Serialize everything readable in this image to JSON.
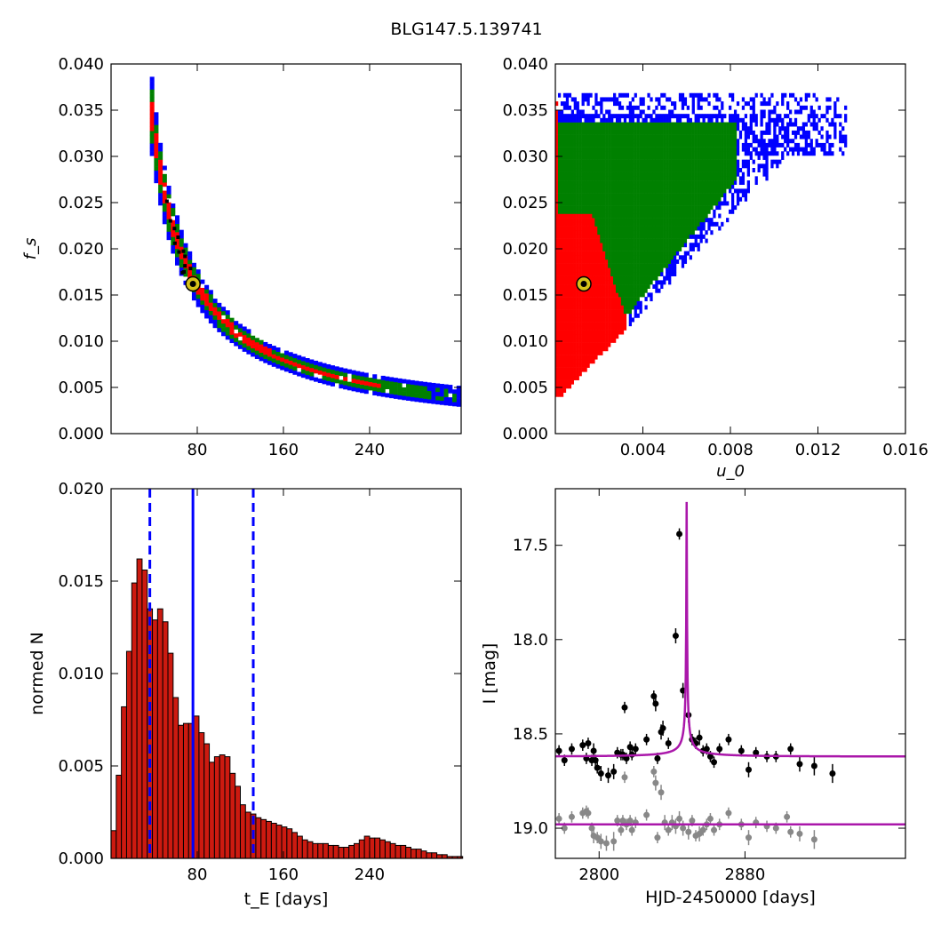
{
  "figure_title": "BLG147.5.139741",
  "colors": {
    "blue": "#0000ff",
    "green": "#008000",
    "red": "#ff0000",
    "bar": "#cc1a10",
    "model": "#aa17aa",
    "gray": "#888888"
  },
  "chart_data": [
    {
      "id": "fs_vs_tE",
      "type": "heatmap",
      "title": "",
      "xlabel": "",
      "ylabel": "f_s",
      "xlim": [
        0,
        325
      ],
      "ylim": [
        0,
        0.04
      ],
      "xticks": [
        80,
        160,
        240
      ],
      "yticks": [
        0.0,
        0.005,
        0.01,
        0.015,
        0.02,
        0.025,
        0.03,
        0.035,
        0.04
      ],
      "ytick_labels": [
        "0.000",
        "0.005",
        "0.010",
        "0.015",
        "0.020",
        "0.025",
        "0.030",
        "0.035",
        "0.040"
      ],
      "confidence_levels": [
        "red",
        "green",
        "blue"
      ],
      "relation": "f_s ≈ 1.23 / t_E",
      "t_range": [
        36,
        322
      ],
      "best_fit": {
        "x": 76,
        "y": 0.0162
      }
    },
    {
      "id": "fs_vs_u0",
      "type": "heatmap",
      "title": "",
      "xlabel": "u_0",
      "ylabel": "",
      "xlim": [
        0,
        0.016
      ],
      "ylim": [
        0,
        0.04
      ],
      "xticks": [
        0.004,
        0.008,
        0.012,
        0.016
      ],
      "xtick_labels": [
        "0.004",
        "0.008",
        "0.012",
        "0.016"
      ],
      "yticks": [
        0.0,
        0.005,
        0.01,
        0.015,
        0.02,
        0.025,
        0.03,
        0.035,
        0.04
      ],
      "ytick_labels": [
        "0.000",
        "0.005",
        "0.010",
        "0.015",
        "0.020",
        "0.025",
        "0.030",
        "0.035",
        "0.040"
      ],
      "confidence_levels": [
        "red",
        "green",
        "blue"
      ],
      "best_fit": {
        "x": 0.0013,
        "y": 0.0162
      }
    },
    {
      "id": "tE_histogram",
      "type": "bar",
      "title": "",
      "xlabel": "t_E [days]",
      "ylabel": "normed N",
      "xlim": [
        0,
        325
      ],
      "ylim": [
        0,
        0.02
      ],
      "xticks": [
        80,
        160,
        240
      ],
      "yticks": [
        0.0,
        0.005,
        0.01,
        0.015,
        0.02
      ],
      "ytick_labels": [
        "0.000",
        "0.005",
        "0.010",
        "0.015",
        "0.020"
      ],
      "bin_start": 0,
      "bin_width": 4.8,
      "values": [
        0.0015,
        0.0045,
        0.0082,
        0.0112,
        0.0149,
        0.0162,
        0.0156,
        0.0135,
        0.0129,
        0.0135,
        0.0128,
        0.0111,
        0.0087,
        0.0072,
        0.0073,
        0.0073,
        0.0077,
        0.0068,
        0.0062,
        0.0052,
        0.0055,
        0.0056,
        0.0055,
        0.0046,
        0.0039,
        0.0029,
        0.0025,
        0.0024,
        0.0022,
        0.0021,
        0.002,
        0.0019,
        0.0018,
        0.0017,
        0.0016,
        0.0014,
        0.0012,
        0.001,
        0.0009,
        0.0008,
        0.0008,
        0.0008,
        0.0007,
        0.0007,
        0.0006,
        0.0006,
        0.0007,
        0.0008,
        0.001,
        0.0012,
        0.0011,
        0.0011,
        0.001,
        0.0009,
        0.0008,
        0.0007,
        0.0007,
        0.0006,
        0.0005,
        0.0005,
        0.0004,
        0.0003,
        0.0003,
        0.0002,
        0.0002,
        0.0001,
        0.0001,
        0.0001
      ],
      "median": 76,
      "interval": [
        36,
        132
      ]
    },
    {
      "id": "light_curve",
      "type": "scatter",
      "title": "",
      "xlabel": "HJD-2450000 [days]",
      "ylabel": "I [mag]",
      "xlim": [
        2776,
        2968
      ],
      "ylim": [
        19.16,
        17.2
      ],
      "y_inverted": true,
      "xticks": [
        2800,
        2880
      ],
      "yticks": [
        17.5,
        18.0,
        18.5,
        19.0
      ],
      "ytick_labels": [
        "17.5",
        "18.0",
        "18.5",
        "19.0"
      ],
      "model": {
        "t0": 2848,
        "peak_mag": 17.27,
        "base_mag": 18.62,
        "tE": 76,
        "u0": 0.0013,
        "fs": 0.0162
      },
      "residual_level": 18.98,
      "data_points": [
        [
          2778,
          18.59,
          0.03
        ],
        [
          2781,
          18.64,
          0.03
        ],
        [
          2785,
          18.58,
          0.03
        ],
        [
          2791,
          18.56,
          0.03
        ],
        [
          2793,
          18.63,
          0.03
        ],
        [
          2794,
          18.55,
          0.03
        ],
        [
          2796,
          18.64,
          0.03
        ],
        [
          2797,
          18.59,
          0.04
        ],
        [
          2798,
          18.64,
          0.03
        ],
        [
          2799,
          18.68,
          0.03
        ],
        [
          2801,
          18.71,
          0.04
        ],
        [
          2805,
          18.72,
          0.04
        ],
        [
          2808,
          18.7,
          0.04
        ],
        [
          2810,
          18.6,
          0.03
        ],
        [
          2812,
          18.61,
          0.03
        ],
        [
          2813,
          18.61,
          0.03
        ],
        [
          2814,
          18.36,
          0.03
        ],
        [
          2815,
          18.63,
          0.03
        ],
        [
          2817,
          18.57,
          0.03
        ],
        [
          2818,
          18.61,
          0.03
        ],
        [
          2820,
          18.58,
          0.03
        ],
        [
          2826,
          18.53,
          0.03
        ],
        [
          2830,
          18.3,
          0.03
        ],
        [
          2831,
          18.34,
          0.04
        ],
        [
          2832,
          18.63,
          0.03
        ],
        [
          2834,
          18.49,
          0.04
        ],
        [
          2835,
          18.47,
          0.04
        ],
        [
          2838,
          18.55,
          0.03
        ],
        [
          2842,
          17.98,
          0.04
        ],
        [
          2844,
          17.44,
          0.03
        ],
        [
          2846,
          18.27,
          0.04
        ],
        [
          2849,
          18.4,
          0.04
        ],
        [
          2851,
          18.53,
          0.03
        ],
        [
          2853,
          18.55,
          0.03
        ],
        [
          2855,
          18.52,
          0.04
        ],
        [
          2857,
          18.59,
          0.03
        ],
        [
          2859,
          18.58,
          0.03
        ],
        [
          2861,
          18.62,
          0.03
        ],
        [
          2863,
          18.65,
          0.03
        ],
        [
          2866,
          18.58,
          0.03
        ],
        [
          2871,
          18.53,
          0.03
        ],
        [
          2878,
          18.59,
          0.03
        ],
        [
          2882,
          18.69,
          0.04
        ],
        [
          2886,
          18.6,
          0.03
        ],
        [
          2892,
          18.62,
          0.03
        ],
        [
          2897,
          18.62,
          0.03
        ],
        [
          2905,
          18.58,
          0.03
        ],
        [
          2910,
          18.66,
          0.04
        ],
        [
          2918,
          18.67,
          0.05
        ],
        [
          2928,
          18.71,
          0.05
        ]
      ],
      "residual_points": [
        [
          2778,
          18.95,
          0.03
        ],
        [
          2781,
          19.0,
          0.03
        ],
        [
          2785,
          18.94,
          0.03
        ],
        [
          2791,
          18.92,
          0.03
        ],
        [
          2793,
          18.91,
          0.03
        ],
        [
          2794,
          18.92,
          0.03
        ],
        [
          2796,
          19.0,
          0.03
        ],
        [
          2797,
          19.04,
          0.04
        ],
        [
          2799,
          19.05,
          0.03
        ],
        [
          2801,
          19.07,
          0.04
        ],
        [
          2804,
          19.08,
          0.04
        ],
        [
          2808,
          19.07,
          0.05
        ],
        [
          2810,
          18.96,
          0.03
        ],
        [
          2812,
          19.01,
          0.03
        ],
        [
          2813,
          18.96,
          0.03
        ],
        [
          2814,
          18.73,
          0.03
        ],
        [
          2815,
          18.98,
          0.03
        ],
        [
          2817,
          18.96,
          0.03
        ],
        [
          2818,
          19.01,
          0.03
        ],
        [
          2820,
          18.97,
          0.03
        ],
        [
          2826,
          18.93,
          0.03
        ],
        [
          2830,
          18.7,
          0.03
        ],
        [
          2831,
          18.76,
          0.04
        ],
        [
          2832,
          19.05,
          0.03
        ],
        [
          2834,
          18.81,
          0.04
        ],
        [
          2836,
          18.97,
          0.04
        ],
        [
          2838,
          19.01,
          0.03
        ],
        [
          2840,
          18.97,
          0.04
        ],
        [
          2842,
          18.99,
          0.04
        ],
        [
          2844,
          18.95,
          0.04
        ],
        [
          2846,
          19.0,
          0.04
        ],
        [
          2849,
          19.02,
          0.04
        ],
        [
          2851,
          18.96,
          0.03
        ],
        [
          2853,
          19.04,
          0.03
        ],
        [
          2855,
          19.03,
          0.04
        ],
        [
          2857,
          19.01,
          0.03
        ],
        [
          2859,
          18.98,
          0.03
        ],
        [
          2861,
          18.95,
          0.03
        ],
        [
          2863,
          19.01,
          0.03
        ],
        [
          2866,
          18.98,
          0.03
        ],
        [
          2871,
          18.92,
          0.03
        ],
        [
          2878,
          18.98,
          0.03
        ],
        [
          2882,
          19.05,
          0.04
        ],
        [
          2886,
          18.97,
          0.03
        ],
        [
          2892,
          18.99,
          0.03
        ],
        [
          2897,
          19.0,
          0.03
        ],
        [
          2903,
          18.94,
          0.03
        ],
        [
          2905,
          19.02,
          0.03
        ],
        [
          2910,
          19.03,
          0.04
        ],
        [
          2918,
          19.06,
          0.05
        ]
      ]
    }
  ]
}
